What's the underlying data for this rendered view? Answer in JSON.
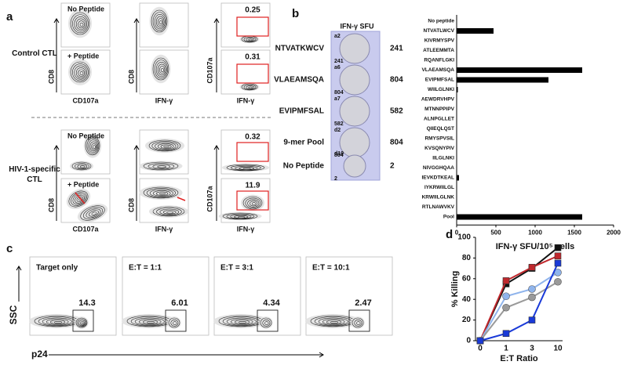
{
  "panel_labels": [
    "a",
    "b",
    "c",
    "d"
  ],
  "panel_a": {
    "groups": [
      "Control CTL",
      "HIV-1-specific CTL"
    ],
    "conditions": [
      "No Peptide",
      "+ Peptide",
      "No Peptide",
      "+ Peptide"
    ],
    "axes": {
      "cd8": "CD8",
      "cd107a": "CD107a",
      "ifng": "IFN-γ"
    },
    "gate_values": [
      0.25,
      0.31,
      0.32,
      11.9
    ]
  },
  "panel_b": {
    "header": "IFN-γ SFU",
    "wells": [
      {
        "label": "NTVATKWCV",
        "sfu": 241,
        "id": "a2",
        "count": "241"
      },
      {
        "label": "VLAEAMSQA",
        "sfu": 804,
        "id": "a6",
        "count": "804"
      },
      {
        "label": "EVIPMFSAL",
        "sfu": 582,
        "id": "a7",
        "count": "582"
      },
      {
        "label": "9-mer Pool",
        "sfu": 804,
        "id": "d2",
        "count": "804"
      },
      {
        "label": "No Peptide",
        "sfu": 2,
        "id": "d10",
        "count": "2"
      }
    ]
  },
  "panel_c": {
    "plots": [
      {
        "label": "Target only",
        "gate": 14.3
      },
      {
        "label": "E:T = 1:1",
        "gate": 6.01
      },
      {
        "label": "E:T = 3:1",
        "gate": 4.34
      },
      {
        "label": "E:T = 10:1",
        "gate": 2.47
      }
    ],
    "y_label": "SSC",
    "x_label": "p24"
  },
  "chart_data": [
    {
      "type": "hbar",
      "x_label": "IFN-γ SFU/10⁵ cells",
      "categories": [
        "No peptide",
        "NTVATLWCV",
        "KIVRMYSPV",
        "ATLEEMMTA",
        "RQANFLGKI",
        "VLAEAMSQA",
        "EVIPMFSAL",
        "WIILGLNKI",
        "AEWDRVHPV",
        "MTNNPPIPV",
        "ALNPGLLET",
        "QIIEQLQST",
        "RMYSPVSIL",
        "KVSQNYPIV",
        "IILGLNKI",
        "NIVGGHQAA",
        "IEVKDTKEAL",
        "IYKRWIILGL",
        "KRWIILGLNK",
        "RTLNAWVKV",
        "Pool"
      ],
      "values": [
        0,
        470,
        0,
        0,
        0,
        1600,
        1170,
        15,
        0,
        0,
        0,
        0,
        0,
        0,
        0,
        0,
        30,
        0,
        0,
        0,
        1600
      ],
      "color": "#000000",
      "xlim": [
        0,
        2000
      ],
      "xticks": [
        0,
        500,
        1000,
        1500,
        2000
      ]
    },
    {
      "type": "line",
      "x_label": "E:T Ratio",
      "y_label": "% Killing",
      "categories": [
        "0",
        "1",
        "3",
        "10"
      ],
      "ylim": [
        0,
        100
      ],
      "yticks": [
        0,
        20,
        40,
        60,
        80,
        100
      ],
      "series": [
        {
          "color": "#111111",
          "marker": "square",
          "values": [
            0,
            55,
            70,
            90
          ]
        },
        {
          "color": "#c0282d",
          "marker": "square",
          "values": [
            0,
            58,
            71,
            82
          ]
        },
        {
          "color": "#8fb4ec",
          "marker": "circle",
          "values": [
            0,
            43,
            50,
            66
          ]
        },
        {
          "color": "#9a9a9a",
          "marker": "circle",
          "values": [
            0,
            32,
            42,
            57
          ]
        },
        {
          "color": "#1a3ad8",
          "marker": "square",
          "values": [
            0,
            7,
            20,
            75
          ]
        }
      ]
    }
  ]
}
